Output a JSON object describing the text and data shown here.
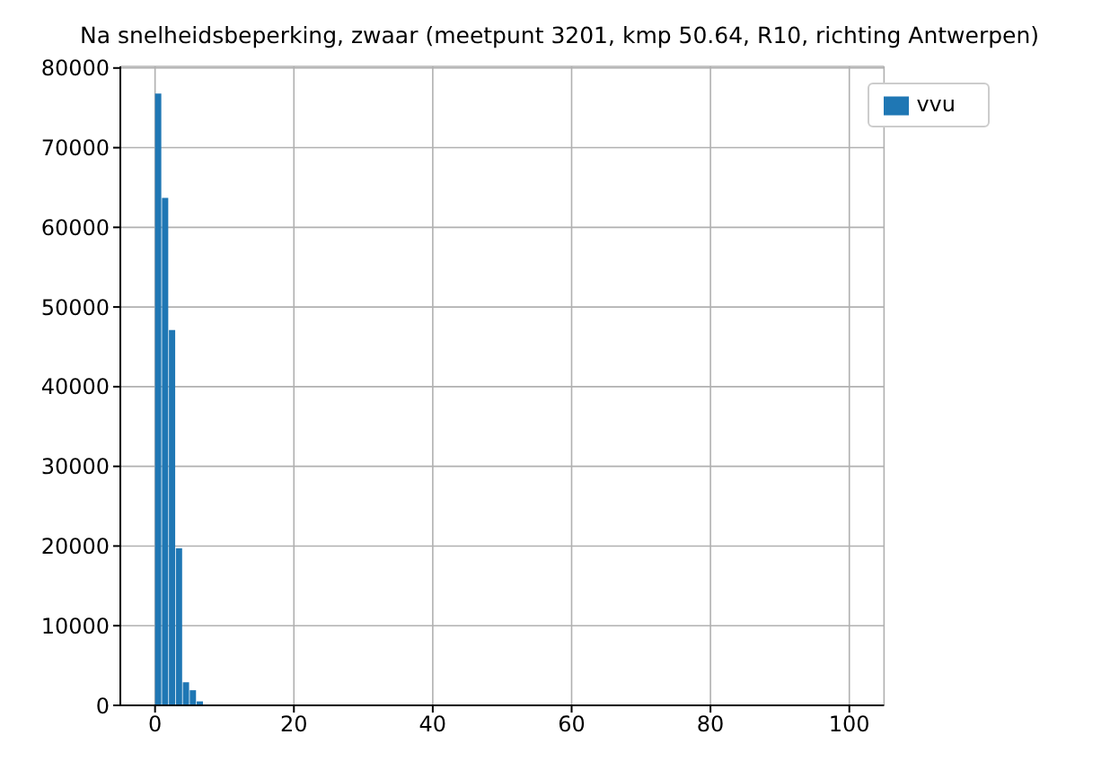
{
  "chart_data": {
    "type": "histogram",
    "title": "Na snelheidsbeperking, zwaar (meetpunt 3201, kmp 50.64, R10, richting Antwerpen)",
    "bins": [
      0,
      1,
      2,
      3,
      4,
      5,
      6,
      7,
      8
    ],
    "series": [
      {
        "name": "vvu",
        "color": "#1f77b4",
        "values": [
          76800,
          63700,
          47100,
          19700,
          2900,
          1900,
          500,
          100
        ]
      }
    ],
    "xlim": [
      -5,
      105
    ],
    "xticks": [
      0,
      20,
      40,
      60,
      80,
      100
    ],
    "ylim": [
      0,
      80200
    ],
    "yticks": [
      0,
      10000,
      20000,
      30000,
      40000,
      50000,
      60000,
      70000,
      80000
    ],
    "grid": true,
    "legend": "top right"
  }
}
